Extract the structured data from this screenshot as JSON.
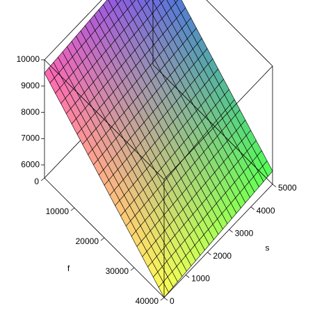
{
  "chart_data": {
    "type": "surface3d",
    "x_axis": {
      "label": "s",
      "range": [
        0,
        5000
      ],
      "ticks": [
        0,
        1000,
        2000,
        3000,
        4000,
        5000
      ]
    },
    "y_axis": {
      "label": "f",
      "range": [
        0,
        40000
      ],
      "ticks": [
        0,
        10000,
        20000,
        30000,
        40000
      ]
    },
    "z_axis": {
      "label": "",
      "range": [
        5500,
        10000
      ],
      "ticks": [
        6000,
        7000,
        8000,
        9000,
        10000
      ]
    },
    "surface": {
      "description_of_plane_values": "z at (s,f) corners",
      "corners": [
        {
          "s": 0,
          "f": 0,
          "z": 9500
        },
        {
          "s": 5000,
          "f": 0,
          "z": 10000
        },
        {
          "s": 0,
          "f": 40000,
          "z": 5500
        },
        {
          "s": 5000,
          "f": 40000,
          "z": 6000
        }
      ]
    },
    "grid": true,
    "box": true,
    "colors": {
      "corner_s0_f0": "#ff66b3",
      "corner_s5000_f0": "#5050ff",
      "corner_s0_f40000": "#ffff55",
      "corner_s5000_f40000": "#55ff55",
      "mesh_line": "#000000"
    }
  }
}
